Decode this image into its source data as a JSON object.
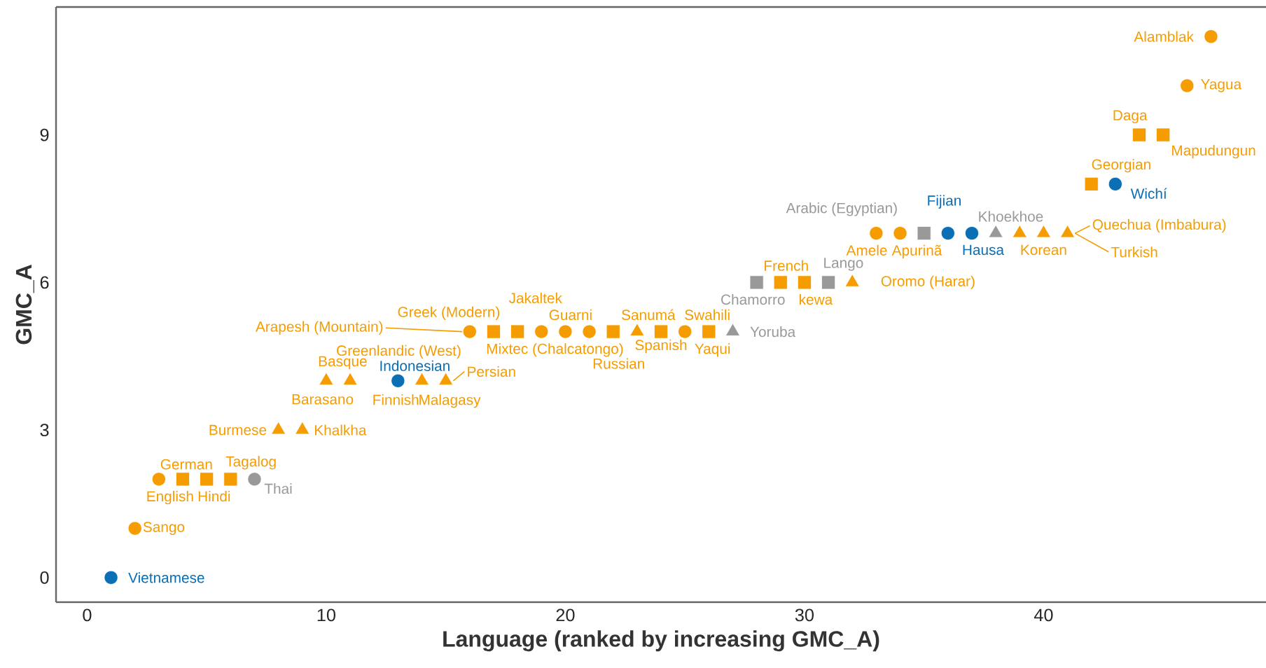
{
  "chart_data": {
    "type": "scatter",
    "xlabel": "Language (ranked by increasing GMC_A)",
    "ylabel": "GMC_A",
    "xlim": [
      -1.3,
      49.3
    ],
    "ylim": [
      -0.5,
      11.6
    ],
    "xticks": [
      0,
      10,
      20,
      30,
      40
    ],
    "yticks": [
      0,
      3,
      6,
      9
    ],
    "grid": false,
    "series": [
      {
        "color": "#f59c00",
        "marker": "circle",
        "x": [
          2,
          3,
          16,
          19,
          20,
          21,
          25,
          33,
          34,
          46,
          47
        ],
        "values": [
          1,
          2,
          5,
          5,
          5,
          5,
          5,
          7,
          7,
          10,
          11
        ]
      },
      {
        "color": "#f59c00",
        "marker": "square",
        "x": [
          4,
          5,
          6,
          17,
          18,
          22,
          24,
          26,
          29,
          30,
          42,
          44,
          45
        ],
        "values": [
          2,
          2,
          2,
          5,
          5,
          5,
          5,
          5,
          6,
          6,
          8,
          9,
          9
        ]
      },
      {
        "color": "#f59c00",
        "marker": "triangle",
        "x": [
          8,
          9,
          10,
          11,
          14,
          15,
          23,
          32,
          39,
          40,
          41
        ],
        "values": [
          3,
          3,
          4,
          4,
          4,
          4,
          5,
          6,
          7,
          7,
          7
        ]
      },
      {
        "color": "#0a6fb5",
        "marker": "circle",
        "x": [
          1,
          13,
          36,
          37,
          43
        ],
        "values": [
          0,
          4,
          7,
          7,
          8
        ]
      },
      {
        "color": "#999999",
        "marker": "circle",
        "x": [
          7
        ],
        "values": [
          2
        ]
      },
      {
        "color": "#999999",
        "marker": "square",
        "x": [
          28,
          31,
          35
        ],
        "values": [
          6,
          6,
          7
        ]
      },
      {
        "color": "#999999",
        "marker": "triangle",
        "x": [
          27,
          38
        ],
        "values": [
          5,
          7
        ]
      }
    ],
    "annotations": [
      {
        "text": "Vietnamese",
        "x": 1,
        "y": 0
      },
      {
        "text": "Sango",
        "x": 2,
        "y": 1
      },
      {
        "text": "English",
        "x": 3,
        "y": 2
      },
      {
        "text": "German",
        "x": 4,
        "y": 2
      },
      {
        "text": "Hindi",
        "x": 5,
        "y": 2
      },
      {
        "text": "Tagalog",
        "x": 6,
        "y": 2
      },
      {
        "text": "Thai",
        "x": 7,
        "y": 2
      },
      {
        "text": "Burmese",
        "x": 8,
        "y": 3
      },
      {
        "text": "Khalkha",
        "x": 9,
        "y": 3
      },
      {
        "text": "Barasano",
        "x": 10,
        "y": 4
      },
      {
        "text": "Basque",
        "x": 11,
        "y": 4
      },
      {
        "text": "Indonesian",
        "x": 13,
        "y": 4
      },
      {
        "text": "Finnish",
        "x": 14,
        "y": 4
      },
      {
        "text": "Malagasy",
        "x": 15,
        "y": 4
      },
      {
        "text": "Persian",
        "x": 15,
        "y": 4
      },
      {
        "text": "Arapesh (Mountain)",
        "x": 16,
        "y": 5
      },
      {
        "text": "Greek (Modern)",
        "x": 17,
        "y": 5
      },
      {
        "text": "Greenlandic (West)",
        "x": 16,
        "y": 5
      },
      {
        "text": "Mixtec (Chalcatongo)",
        "x": 18,
        "y": 5
      },
      {
        "text": "Jakaltek",
        "x": 20,
        "y": 5
      },
      {
        "text": "Guarni",
        "x": 21,
        "y": 5
      },
      {
        "text": "Russian",
        "x": 22,
        "y": 5
      },
      {
        "text": "Sanumá",
        "x": 23,
        "y": 5
      },
      {
        "text": "Spanish",
        "x": 24,
        "y": 5
      },
      {
        "text": "Swahili",
        "x": 25,
        "y": 5
      },
      {
        "text": "Yaqui",
        "x": 26,
        "y": 5
      },
      {
        "text": "Yoruba",
        "x": 27,
        "y": 5
      },
      {
        "text": "Chamorro",
        "x": 28,
        "y": 6
      },
      {
        "text": "French",
        "x": 29,
        "y": 6
      },
      {
        "text": "kewa",
        "x": 30,
        "y": 6
      },
      {
        "text": "Lango",
        "x": 31,
        "y": 6
      },
      {
        "text": "Oromo (Harar)",
        "x": 32,
        "y": 6
      },
      {
        "text": "Arabic (Egyptian)",
        "x": 35,
        "y": 7
      },
      {
        "text": "Amele",
        "x": 33,
        "y": 7
      },
      {
        "text": "Apurinã",
        "x": 34,
        "y": 7
      },
      {
        "text": "Fijian",
        "x": 36,
        "y": 7
      },
      {
        "text": "Hausa",
        "x": 37,
        "y": 7
      },
      {
        "text": "Khoekhoe",
        "x": 38,
        "y": 7
      },
      {
        "text": "Korean",
        "x": 40,
        "y": 7
      },
      {
        "text": "Quechua (Imbabura)",
        "x": 41,
        "y": 7
      },
      {
        "text": "Turkish",
        "x": 41,
        "y": 7
      },
      {
        "text": "Georgian",
        "x": 42,
        "y": 8
      },
      {
        "text": "Wichí",
        "x": 43,
        "y": 8
      },
      {
        "text": "Daga",
        "x": 44,
        "y": 9
      },
      {
        "text": "Mapudungun",
        "x": 45,
        "y": 9
      },
      {
        "text": "Yagua",
        "x": 46,
        "y": 10
      },
      {
        "text": "Alamblak",
        "x": 47,
        "y": 11
      }
    ]
  }
}
